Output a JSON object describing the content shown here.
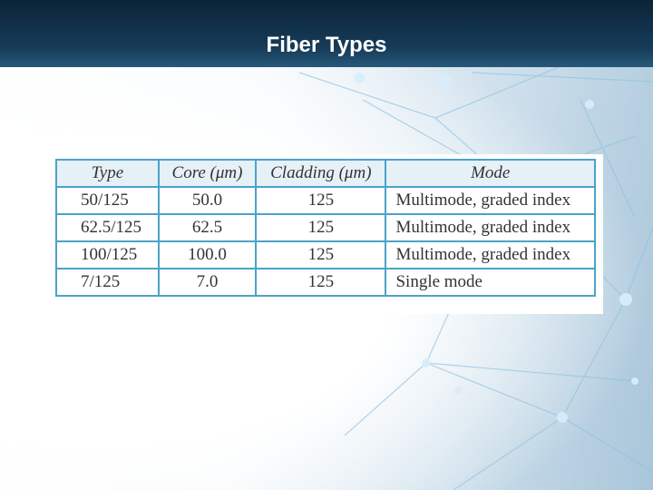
{
  "header": {
    "title": "Fiber Types"
  },
  "table": {
    "columns": [
      "Type",
      "Core (μm)",
      "Cladding (μm)",
      "Mode"
    ],
    "rows": [
      [
        "50/125",
        "50.0",
        "125",
        "Multimode, graded index"
      ],
      [
        "62.5/125",
        "62.5",
        "125",
        "Multimode, graded index"
      ],
      [
        "100/125",
        "100.0",
        "125",
        "Multimode, graded index"
      ],
      [
        "7/125",
        "7.0",
        "125",
        "Single mode"
      ]
    ]
  }
}
